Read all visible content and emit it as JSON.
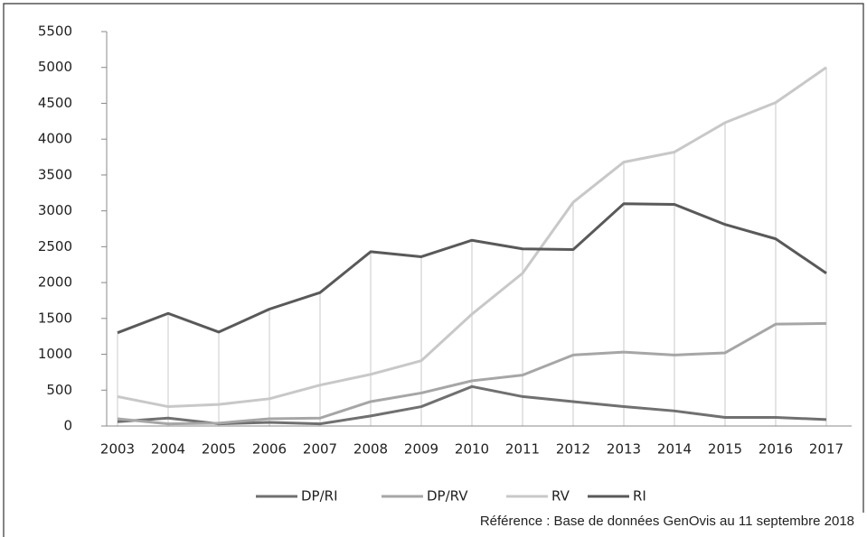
{
  "chart_data": {
    "type": "line",
    "categories": [
      "2003",
      "2004",
      "2005",
      "2006",
      "2007",
      "2008",
      "2009",
      "2010",
      "2011",
      "2012",
      "2013",
      "2014",
      "2015",
      "2016",
      "2017"
    ],
    "series": [
      {
        "name": "DP/RI",
        "color": "#707070",
        "values": [
          60,
          110,
          30,
          50,
          30,
          140,
          270,
          550,
          410,
          340,
          270,
          210,
          120,
          120,
          90
        ]
      },
      {
        "name": "DP/RV",
        "color": "#a6a6a6",
        "values": [
          100,
          30,
          40,
          100,
          110,
          340,
          460,
          630,
          710,
          990,
          1030,
          990,
          1020,
          1420,
          1430
        ]
      },
      {
        "name": "RV",
        "color": "#c8c8c8",
        "values": [
          410,
          270,
          300,
          380,
          570,
          720,
          910,
          1560,
          2130,
          3120,
          3680,
          3820,
          4230,
          4510,
          5000
        ]
      },
      {
        "name": "RI",
        "color": "#595959",
        "values": [
          1300,
          1570,
          1310,
          1630,
          1860,
          2430,
          2360,
          2590,
          2470,
          2460,
          3100,
          3090,
          2810,
          2610,
          2130
        ]
      }
    ],
    "ylim": [
      0,
      5500
    ],
    "yticks": [
      0,
      500,
      1000,
      1500,
      2000,
      2500,
      3000,
      3500,
      4000,
      4500,
      5000,
      5500
    ],
    "legend": "bottom",
    "footnote": "Référence : Base de données GenOvis au 11 septembre 2018"
  }
}
